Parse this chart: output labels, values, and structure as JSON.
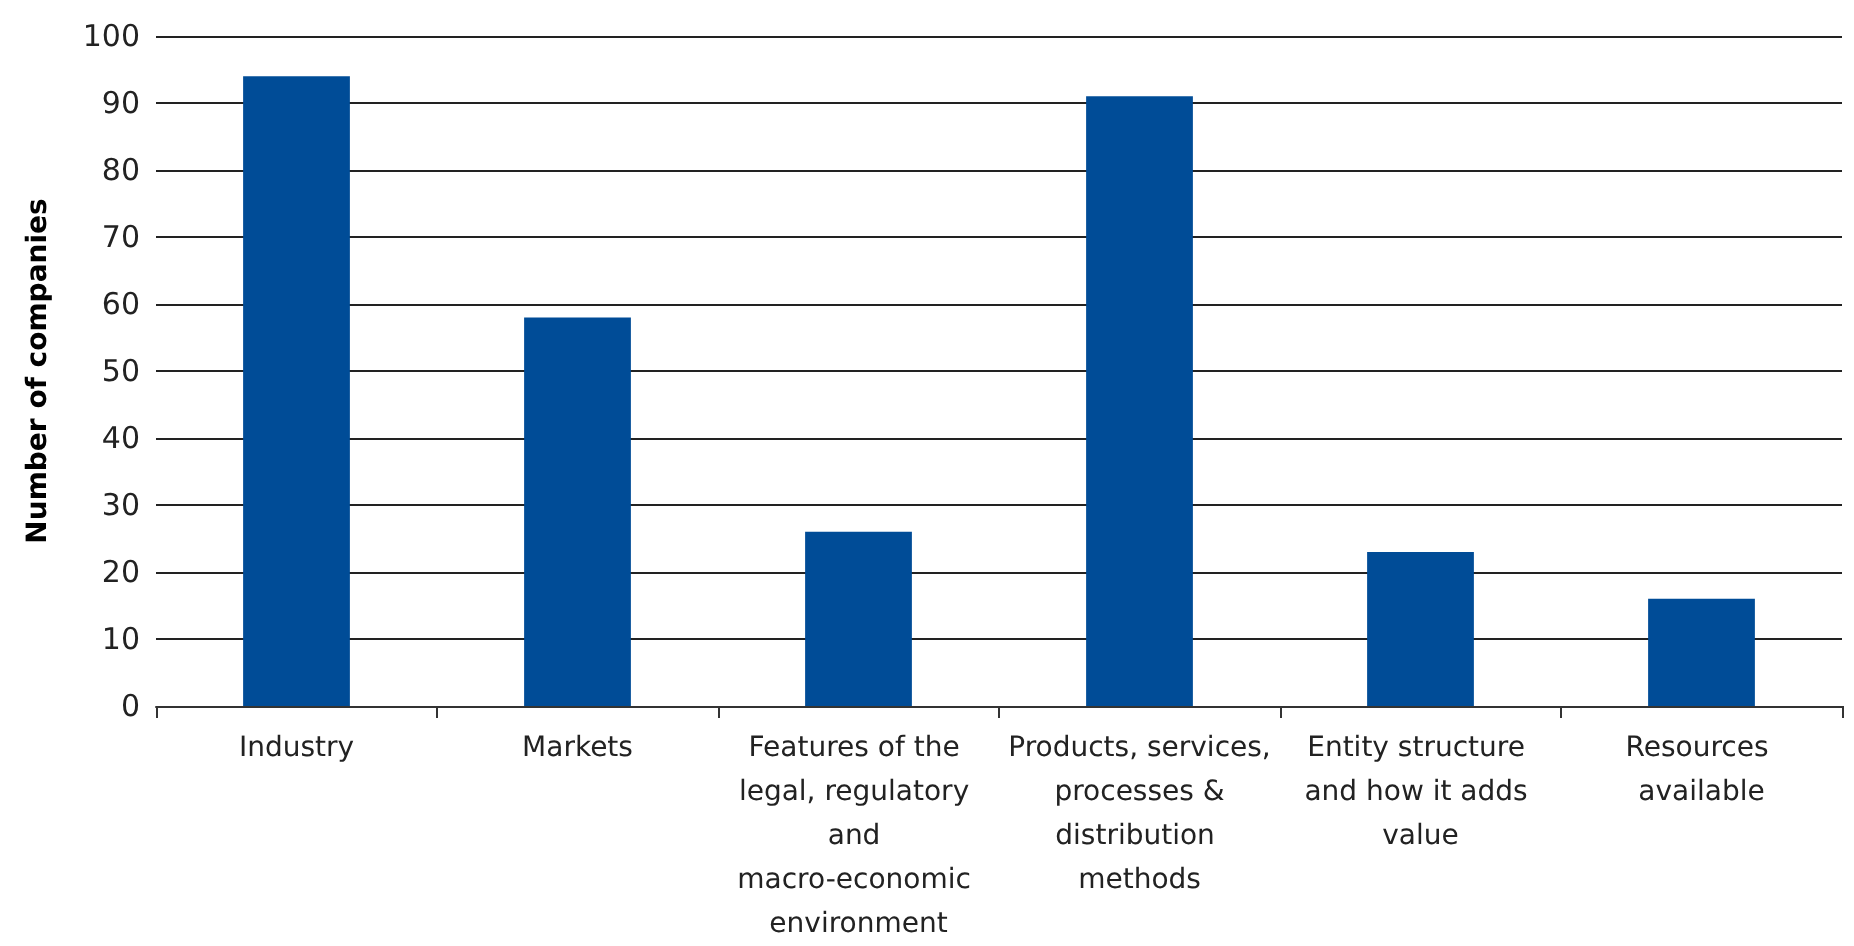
{
  "chart_data": {
    "type": "bar",
    "ylabel": "Number of companies",
    "categories": [
      "Industry",
      "Markets",
      "Features of the legal, regulatory and macro-economic environment",
      "Products, services, processes & distribution methods",
      "Entity structure and how it adds value",
      "Resources available"
    ],
    "values": [
      94,
      58,
      26,
      91,
      23,
      16
    ],
    "color": "#004c97",
    "ylim": [
      0,
      100
    ],
    "yticks": [
      0,
      10,
      20,
      30,
      40,
      50,
      60,
      70,
      80,
      90,
      100
    ],
    "grid": "y"
  }
}
